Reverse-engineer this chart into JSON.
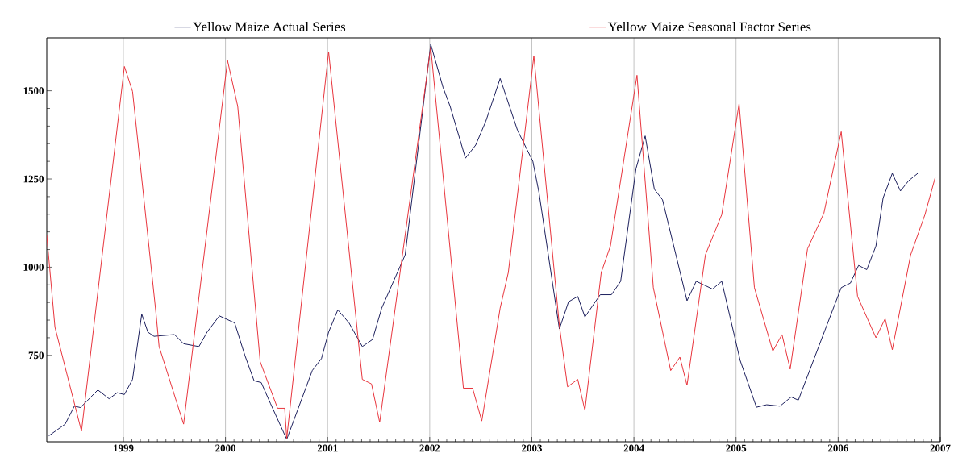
{
  "chart_data": {
    "type": "line",
    "xlim": [
      1998.25,
      2007.0
    ],
    "ylim": [
      505,
      1650
    ],
    "xticks": [
      1999,
      2000,
      2001,
      2002,
      2003,
      2004,
      2005,
      2006,
      2007
    ],
    "yticks": [
      750,
      1000,
      1250,
      1500
    ],
    "grid": "x",
    "legend": "top",
    "series": [
      {
        "name": "Yellow Maize Actual Series",
        "color": "#1c1f5c",
        "x": [
          1998.27,
          1998.43,
          1998.52,
          1998.58,
          1998.75,
          1998.86,
          1998.94,
          1999.01,
          1999.09,
          1999.18,
          1999.24,
          1999.3,
          1999.5,
          1999.59,
          1999.74,
          1999.82,
          1999.94,
          2000.09,
          2000.19,
          2000.28,
          2000.35,
          2000.44,
          2000.6,
          2000.85,
          2000.94,
          2001.01,
          2001.1,
          2001.21,
          2001.34,
          2001.44,
          2001.53,
          2001.76,
          2002.01,
          2002.13,
          2002.2,
          2002.35,
          2002.45,
          2002.55,
          2002.69,
          2002.86,
          2003.01,
          2003.07,
          2003.27,
          2003.36,
          2003.45,
          2003.52,
          2003.67,
          2003.78,
          2003.87,
          2004.02,
          2004.11,
          2004.2,
          2004.28,
          2004.52,
          2004.61,
          2004.77,
          2004.86,
          2005.04,
          2005.2,
          2005.3,
          2005.43,
          2005.54,
          2005.61,
          2005.87,
          2006.03,
          2006.12,
          2006.2,
          2006.28,
          2006.37,
          2006.44,
          2006.53,
          2006.61,
          2006.69,
          2006.78
        ],
        "values": [
          522,
          555,
          606,
          602,
          652,
          627,
          644,
          639,
          682,
          867,
          816,
          804,
          809,
          783,
          775,
          816,
          862,
          842,
          750,
          678,
          673,
          614,
          512,
          707,
          741,
          816,
          879,
          842,
          775,
          795,
          884,
          1035,
          1632,
          1510,
          1456,
          1309,
          1346,
          1414,
          1535,
          1388,
          1300,
          1212,
          825,
          902,
          917,
          859,
          922,
          922,
          960,
          1279,
          1372,
          1221,
          1191,
          905,
          960,
          938,
          960,
          736,
          603,
          610,
          606,
          632,
          623,
          821,
          942,
          955,
          1005,
          993,
          1060,
          1196,
          1266,
          1216,
          1245,
          1266
        ]
      },
      {
        "name": "Yellow Maize Seasonal Factor Series",
        "color": "#e8343c",
        "x": [
          1998.25,
          1998.33,
          1998.59,
          1999.01,
          1999.09,
          1999.32,
          1999.35,
          1999.59,
          2000.02,
          2000.12,
          2000.34,
          2000.51,
          2000.58,
          2000.6,
          2001.01,
          2001.34,
          2001.43,
          2001.51,
          2002.01,
          2002.33,
          2002.42,
          2002.51,
          2002.69,
          2002.77,
          2003.02,
          2003.27,
          2003.35,
          2003.45,
          2003.52,
          2003.68,
          2003.77,
          2004.03,
          2004.19,
          2004.36,
          2004.45,
          2004.52,
          2004.7,
          2004.86,
          2005.03,
          2005.18,
          2005.36,
          2005.45,
          2005.53,
          2005.7,
          2005.86,
          2006.03,
          2006.19,
          2006.37,
          2006.46,
          2006.53,
          2006.71,
          2006.85,
          2006.95
        ],
        "values": [
          1090,
          830,
          535,
          1569,
          1498,
          868,
          775,
          555,
          1586,
          1456,
          732,
          600,
          600,
          515,
          1611,
          682,
          669,
          560,
          1624,
          657,
          657,
          564,
          884,
          985,
          1599,
          834,
          661,
          682,
          594,
          985,
          1060,
          1544,
          942,
          707,
          745,
          665,
          1035,
          1149,
          1464,
          942,
          762,
          809,
          711,
          1052,
          1153,
          1384,
          917,
          800,
          854,
          766,
          1035,
          1149,
          1254
        ]
      }
    ]
  }
}
